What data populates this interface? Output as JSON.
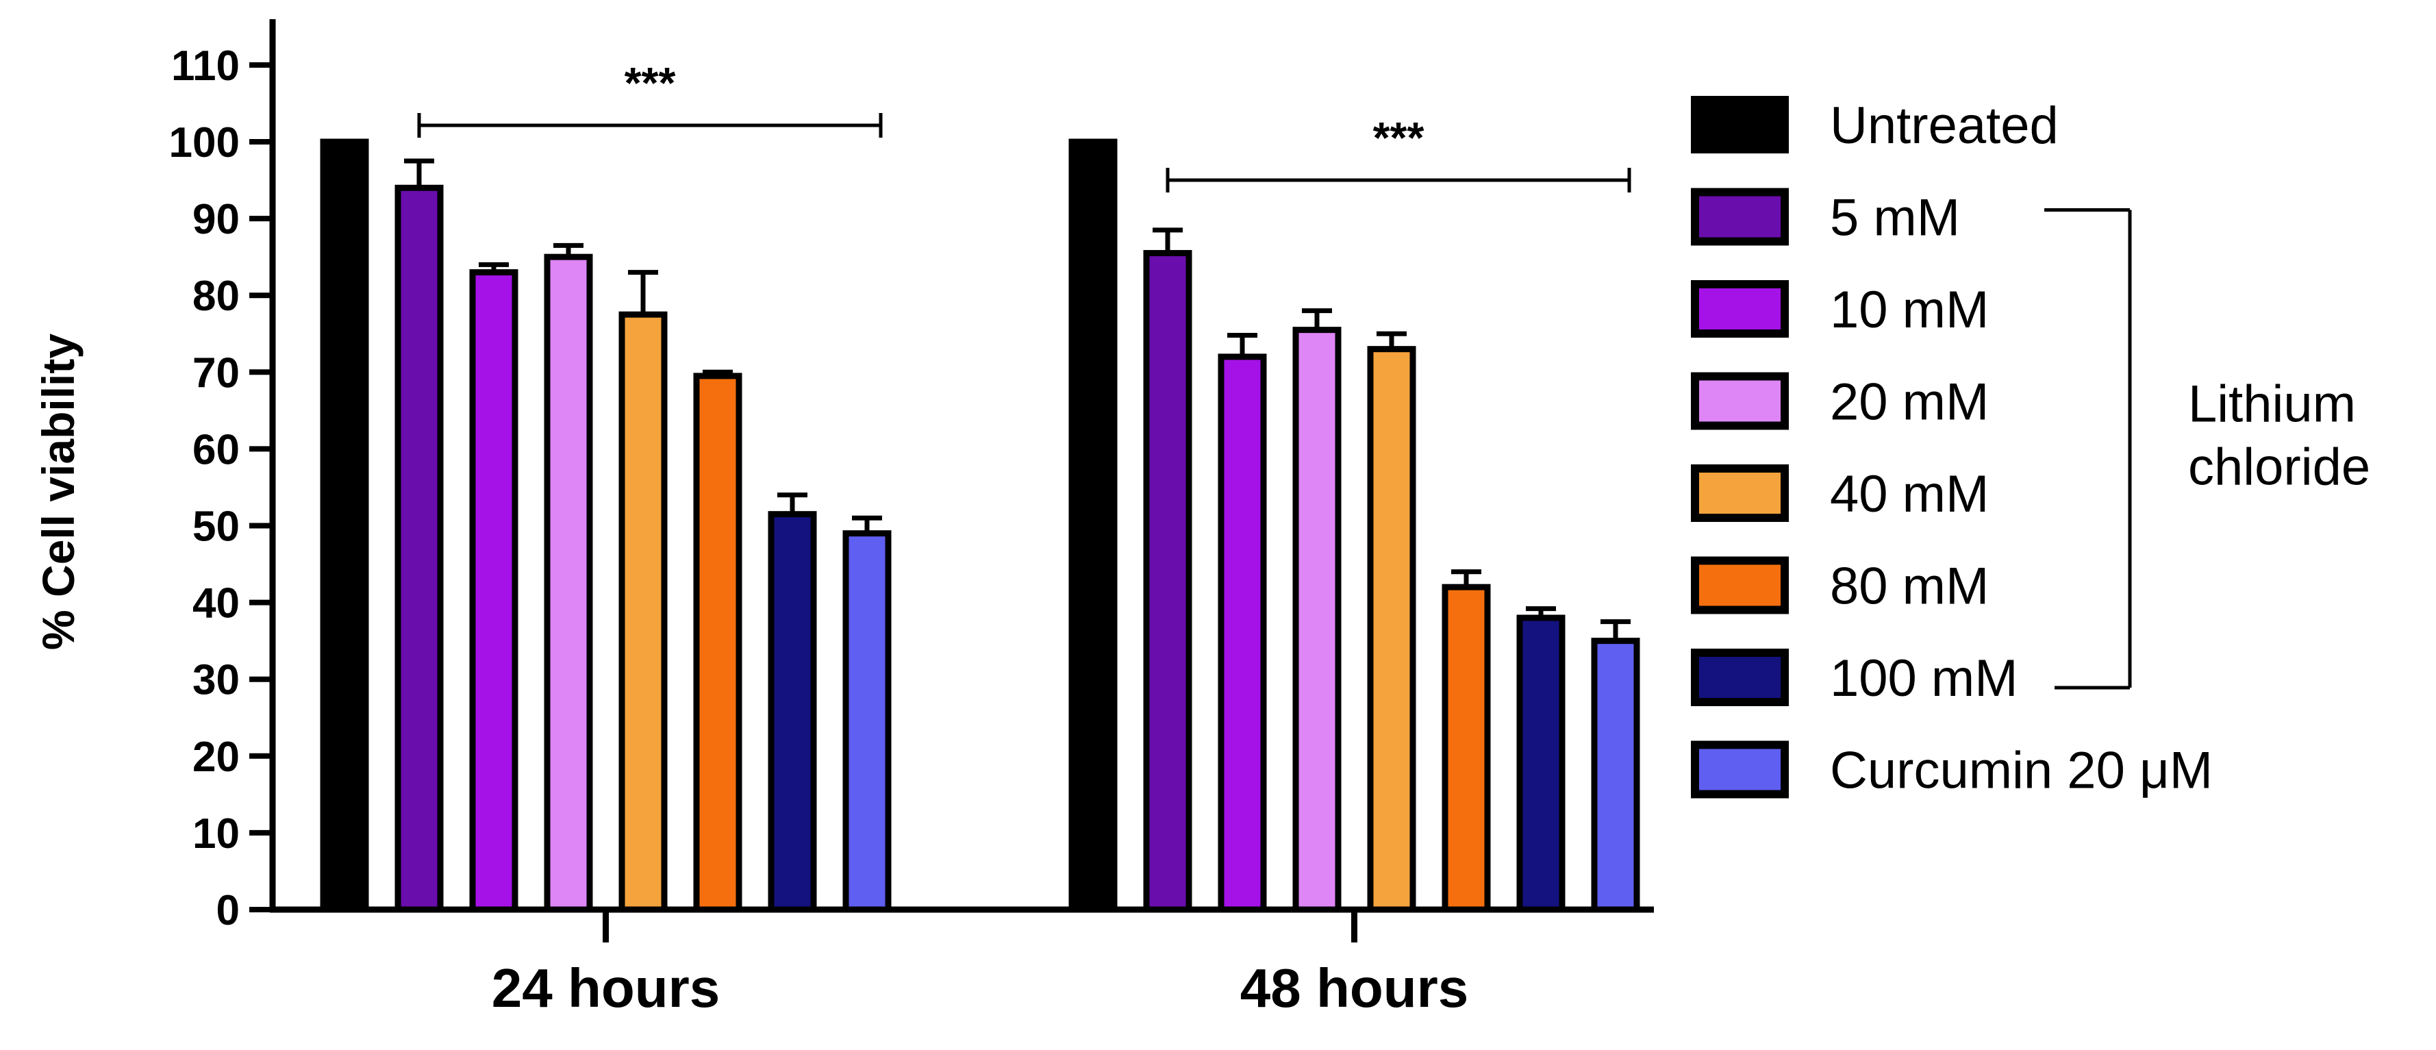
{
  "chart_data": {
    "type": "bar",
    "title": "",
    "xlabel": "",
    "ylabel": "% Cell viability",
    "ylim": [
      0,
      110
    ],
    "yticks": [
      0,
      10,
      20,
      30,
      40,
      50,
      60,
      70,
      80,
      90,
      100,
      110
    ],
    "grid": false,
    "legend_position": "right",
    "categories": [
      "24 hours",
      "48 hours"
    ],
    "series": [
      {
        "name": "Untreated",
        "color": "#000000",
        "values": [
          100,
          100
        ],
        "errors": [
          0,
          0
        ]
      },
      {
        "name": "5 mM",
        "color": "#6a0dad",
        "values": [
          94,
          85.5
        ],
        "errors": [
          3.5,
          3
        ]
      },
      {
        "name": "10 mM",
        "color": "#a512e8",
        "values": [
          83,
          72
        ],
        "errors": [
          1,
          2.8
        ]
      },
      {
        "name": "20 mM",
        "color": "#de86f5",
        "values": [
          85,
          75.5
        ],
        "errors": [
          1.5,
          2.5
        ]
      },
      {
        "name": "40 mM",
        "color": "#f5a33c",
        "values": [
          77.5,
          73
        ],
        "errors": [
          5.5,
          2
        ]
      },
      {
        "name": "80 mM",
        "color": "#f56f0e",
        "values": [
          69.5,
          42
        ],
        "errors": [
          0.5,
          2
        ]
      },
      {
        "name": "100 mM",
        "color": "#14127f",
        "values": [
          51.5,
          38
        ],
        "errors": [
          2.5,
          1.2
        ]
      },
      {
        "name": "Curcumin 20 μM",
        "color": "#5f5ff2",
        "values": [
          49,
          35
        ],
        "errors": [
          2,
          2.5
        ]
      }
    ],
    "group_bracket_label": "Lithium chloride",
    "annotations": [
      {
        "text": "***",
        "group": "24 hours"
      },
      {
        "text": "***",
        "group": "48 hours"
      }
    ]
  }
}
